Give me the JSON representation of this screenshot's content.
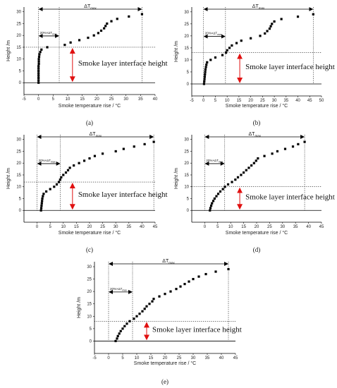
{
  "figure": {
    "x_axis_label": "Smoke temperature rise / °C",
    "y_axis_label": "Height /m",
    "delta_label": "ΔT",
    "delta_sub": "max",
    "twenty_label": "20%×ΔT",
    "twenty_sub": "max",
    "interface_label": "Smoke layer interface height",
    "colors": {
      "marker": "#000000",
      "arrow": "#e01010",
      "axes": "#000000"
    }
  },
  "chart_data": [
    {
      "type": "scatter",
      "panel": "(a)",
      "xlim": [
        -5,
        40
      ],
      "ylim": [
        -5,
        32
      ],
      "xticks": [
        -5,
        0,
        5,
        10,
        15,
        20,
        25,
        30,
        35,
        40
      ],
      "yticks": [
        0,
        5,
        10,
        15,
        20,
        25,
        30
      ],
      "delta_t_max": 35.5,
      "twenty_pct": 7.1,
      "interface_height": 15,
      "points": [
        [
          0,
          0
        ],
        [
          0,
          1
        ],
        [
          0,
          2
        ],
        [
          0,
          3
        ],
        [
          0,
          4
        ],
        [
          0,
          5
        ],
        [
          0,
          6
        ],
        [
          0,
          7
        ],
        [
          0.1,
          8
        ],
        [
          0.1,
          9
        ],
        [
          0.1,
          10
        ],
        [
          0.2,
          11
        ],
        [
          0.3,
          12
        ],
        [
          0.6,
          13
        ],
        [
          1,
          14
        ],
        [
          3,
          15
        ],
        [
          9,
          16
        ],
        [
          11,
          17
        ],
        [
          14,
          18
        ],
        [
          17,
          19
        ],
        [
          19,
          20
        ],
        [
          20.5,
          21
        ],
        [
          21.5,
          22
        ],
        [
          22.5,
          23
        ],
        [
          23,
          24
        ],
        [
          23.5,
          25
        ],
        [
          25,
          26
        ],
        [
          27,
          27
        ],
        [
          31,
          28
        ],
        [
          35.5,
          29
        ]
      ]
    },
    {
      "type": "scatter",
      "panel": "(b)",
      "xlim": [
        -5,
        50
      ],
      "ylim": [
        -5,
        32
      ],
      "xticks": [
        -5,
        0,
        5,
        10,
        15,
        20,
        25,
        30,
        35,
        40,
        45,
        50
      ],
      "yticks": [
        0,
        5,
        10,
        15,
        20,
        25,
        30
      ],
      "delta_t_max": 46.5,
      "twenty_pct": 9.3,
      "interface_height": 13,
      "points": [
        [
          0.2,
          0
        ],
        [
          0.3,
          1
        ],
        [
          0.4,
          2
        ],
        [
          0.5,
          3
        ],
        [
          0.6,
          4
        ],
        [
          0.7,
          5
        ],
        [
          0.8,
          6
        ],
        [
          1,
          7
        ],
        [
          1.2,
          8
        ],
        [
          1.5,
          9
        ],
        [
          3,
          10
        ],
        [
          5,
          11
        ],
        [
          8,
          12
        ],
        [
          9.5,
          13
        ],
        [
          10,
          14
        ],
        [
          11,
          15
        ],
        [
          12,
          16
        ],
        [
          14,
          17
        ],
        [
          16,
          18
        ],
        [
          20,
          19
        ],
        [
          24,
          20
        ],
        [
          26,
          21
        ],
        [
          27,
          22
        ],
        [
          28,
          23
        ],
        [
          28.5,
          24
        ],
        [
          29,
          25
        ],
        [
          30,
          26
        ],
        [
          33,
          27
        ],
        [
          40,
          28
        ],
        [
          46.5,
          29
        ]
      ]
    },
    {
      "type": "scatter",
      "panel": "(c)",
      "xlim": [
        -5,
        45
      ],
      "ylim": [
        -5,
        32
      ],
      "xticks": [
        0,
        5,
        10,
        15,
        20,
        25,
        30,
        35,
        40,
        45
      ],
      "yticks": [
        0,
        5,
        10,
        15,
        20,
        25,
        30
      ],
      "delta_t_max": 44.5,
      "twenty_pct": 8.9,
      "interface_height": 12,
      "points": [
        [
          1.5,
          0
        ],
        [
          1.6,
          1
        ],
        [
          1.7,
          2
        ],
        [
          1.8,
          3
        ],
        [
          1.9,
          4
        ],
        [
          2,
          5
        ],
        [
          2.2,
          6
        ],
        [
          2.5,
          7
        ],
        [
          3.5,
          8
        ],
        [
          5,
          9
        ],
        [
          6.5,
          10
        ],
        [
          7.5,
          11
        ],
        [
          8.3,
          12
        ],
        [
          8.8,
          13
        ],
        [
          9.2,
          14
        ],
        [
          10,
          15
        ],
        [
          11,
          16
        ],
        [
          11.8,
          17
        ],
        [
          12.5,
          18
        ],
        [
          14,
          19
        ],
        [
          16,
          20
        ],
        [
          18,
          21
        ],
        [
          20,
          22
        ],
        [
          22,
          23
        ],
        [
          25,
          24
        ],
        [
          30,
          25
        ],
        [
          33,
          26
        ],
        [
          37,
          27
        ],
        [
          41,
          28
        ],
        [
          44.5,
          29
        ]
      ]
    },
    {
      "type": "scatter",
      "panel": "(d)",
      "xlim": [
        -5,
        45
      ],
      "ylim": [
        -5,
        32
      ],
      "xticks": [
        0,
        5,
        10,
        15,
        20,
        25,
        30,
        35,
        40,
        45
      ],
      "yticks": [
        0,
        5,
        10,
        15,
        20,
        25,
        30
      ],
      "delta_t_max": 38.5,
      "twenty_pct": 7.7,
      "interface_height": 10,
      "points": [
        [
          2,
          0
        ],
        [
          2.2,
          1
        ],
        [
          2.5,
          2
        ],
        [
          2.8,
          3
        ],
        [
          3.3,
          4
        ],
        [
          3.8,
          5
        ],
        [
          4.5,
          6
        ],
        [
          5.2,
          7
        ],
        [
          6,
          8
        ],
        [
          7,
          9
        ],
        [
          7.8,
          10
        ],
        [
          9,
          11
        ],
        [
          10.5,
          12
        ],
        [
          11.8,
          13
        ],
        [
          12.8,
          14
        ],
        [
          14,
          15
        ],
        [
          15,
          16
        ],
        [
          16,
          17
        ],
        [
          17,
          18
        ],
        [
          18,
          19
        ],
        [
          19,
          20
        ],
        [
          19.8,
          21
        ],
        [
          20.5,
          22
        ],
        [
          23,
          23
        ],
        [
          26,
          24
        ],
        [
          28,
          25
        ],
        [
          31,
          26
        ],
        [
          34,
          27
        ],
        [
          36,
          28
        ],
        [
          38.5,
          29
        ]
      ]
    },
    {
      "type": "scatter",
      "panel": "(e)",
      "xlim": [
        -5,
        45
      ],
      "ylim": [
        -5,
        32
      ],
      "xticks": [
        -5,
        0,
        5,
        10,
        15,
        20,
        25,
        30,
        35,
        40,
        45
      ],
      "yticks": [
        0,
        5,
        10,
        15,
        20,
        25,
        30
      ],
      "delta_t_max": 42.5,
      "twenty_pct": 8.5,
      "interface_height": 8,
      "points": [
        [
          2.5,
          0
        ],
        [
          3,
          1
        ],
        [
          3.3,
          2
        ],
        [
          3.8,
          3
        ],
        [
          4.3,
          4
        ],
        [
          5,
          5
        ],
        [
          5.7,
          6
        ],
        [
          6.5,
          7
        ],
        [
          7.5,
          8
        ],
        [
          9,
          9
        ],
        [
          10,
          10
        ],
        [
          11,
          11
        ],
        [
          12,
          12
        ],
        [
          12.8,
          13
        ],
        [
          13.5,
          14
        ],
        [
          14.5,
          15
        ],
        [
          15.5,
          16
        ],
        [
          16,
          17
        ],
        [
          18,
          18
        ],
        [
          20,
          19
        ],
        [
          22,
          20
        ],
        [
          24,
          21
        ],
        [
          25.5,
          22
        ],
        [
          27,
          23
        ],
        [
          28.5,
          24
        ],
        [
          30,
          25
        ],
        [
          32,
          26
        ],
        [
          34.5,
          27
        ],
        [
          38,
          28
        ],
        [
          42.5,
          29
        ]
      ]
    }
  ]
}
